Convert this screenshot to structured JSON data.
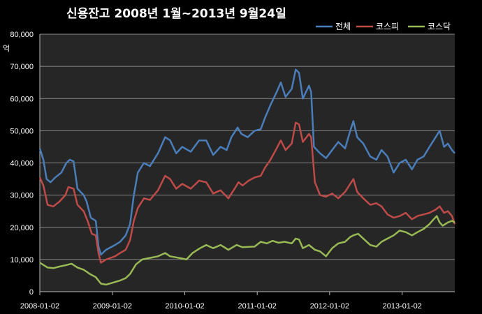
{
  "chart_data": {
    "type": "line",
    "title": "신용잔고 2008년 1월~2013년 9월24일",
    "ylabel": "억",
    "ylim": [
      0,
      80000
    ],
    "yticks": [
      0,
      10000,
      20000,
      30000,
      40000,
      50000,
      60000,
      70000,
      80000
    ],
    "ytick_labels": [
      "0",
      "10,000",
      "20,000",
      "30,000",
      "40,000",
      "50,000",
      "60,000",
      "70,000",
      "80,000"
    ],
    "xlim": [
      "2008-01-02",
      "2013-09-24"
    ],
    "xtick_labels": [
      "2008-01-02",
      "2009-01-02",
      "2010-01-02",
      "2011-01-02",
      "2012-01-02",
      "2013-01-02"
    ],
    "grid": "horizontal",
    "legend_position": "top-right",
    "series": [
      {
        "name": "전체",
        "color": "#4a7ebb",
        "points": [
          [
            "2008-01-02",
            44500
          ],
          [
            "2008-01-20",
            41000
          ],
          [
            "2008-02-05",
            35000
          ],
          [
            "2008-02-25",
            34000
          ],
          [
            "2008-03-20",
            35500
          ],
          [
            "2008-04-20",
            37000
          ],
          [
            "2008-05-15",
            40000
          ],
          [
            "2008-06-01",
            41000
          ],
          [
            "2008-06-20",
            40500
          ],
          [
            "2008-07-10",
            32000
          ],
          [
            "2008-08-10",
            30000
          ],
          [
            "2008-08-25",
            28000
          ],
          [
            "2008-09-15",
            23000
          ],
          [
            "2008-10-10",
            22000
          ],
          [
            "2008-10-24",
            14000
          ],
          [
            "2008-11-05",
            11500
          ],
          [
            "2008-12-01",
            13000
          ],
          [
            "2009-01-15",
            14500
          ],
          [
            "2009-02-10",
            15500
          ],
          [
            "2009-03-10",
            17500
          ],
          [
            "2009-04-01",
            21000
          ],
          [
            "2009-04-20",
            30000
          ],
          [
            "2009-05-10",
            37000
          ],
          [
            "2009-06-10",
            40000
          ],
          [
            "2009-07-10",
            39000
          ],
          [
            "2009-08-20",
            43000
          ],
          [
            "2009-09-25",
            48000
          ],
          [
            "2009-10-20",
            47000
          ],
          [
            "2009-11-20",
            43000
          ],
          [
            "2009-12-20",
            45000
          ],
          [
            "2010-02-01",
            43500
          ],
          [
            "2010-03-15",
            47000
          ],
          [
            "2010-04-20",
            47000
          ],
          [
            "2010-05-25",
            42500
          ],
          [
            "2010-07-01",
            45000
          ],
          [
            "2010-08-01",
            44000
          ],
          [
            "2010-08-25",
            48000
          ],
          [
            "2010-09-25",
            51000
          ],
          [
            "2010-10-15",
            49000
          ],
          [
            "2010-11-15",
            48000
          ],
          [
            "2010-12-20",
            50000
          ],
          [
            "2011-01-20",
            50500
          ],
          [
            "2011-02-10",
            54000
          ],
          [
            "2011-03-10",
            58000
          ],
          [
            "2011-04-10",
            62000
          ],
          [
            "2011-05-01",
            65000
          ],
          [
            "2011-05-25",
            60500
          ],
          [
            "2011-06-25",
            63000
          ],
          [
            "2011-07-15",
            69000
          ],
          [
            "2011-08-01",
            68000
          ],
          [
            "2011-08-20",
            60000
          ],
          [
            "2011-09-20",
            64000
          ],
          [
            "2011-10-01",
            62000
          ],
          [
            "2011-10-15",
            45000
          ],
          [
            "2011-11-15",
            43000
          ],
          [
            "2011-12-15",
            41500
          ],
          [
            "2012-01-15",
            44000
          ],
          [
            "2012-02-15",
            46500
          ],
          [
            "2012-03-20",
            44500
          ],
          [
            "2012-04-15",
            50000
          ],
          [
            "2012-05-01",
            53000
          ],
          [
            "2012-05-20",
            48000
          ],
          [
            "2012-06-20",
            46000
          ],
          [
            "2012-07-25",
            42000
          ],
          [
            "2012-08-25",
            41000
          ],
          [
            "2012-09-20",
            44000
          ],
          [
            "2012-10-20",
            42000
          ],
          [
            "2012-11-20",
            37000
          ],
          [
            "2012-12-20",
            40000
          ],
          [
            "2013-01-20",
            41000
          ],
          [
            "2013-02-20",
            38000
          ],
          [
            "2013-03-20",
            41000
          ],
          [
            "2013-04-20",
            42000
          ],
          [
            "2013-05-20",
            45000
          ],
          [
            "2013-06-20",
            48000
          ],
          [
            "2013-07-10",
            50000
          ],
          [
            "2013-08-01",
            45000
          ],
          [
            "2013-08-20",
            46000
          ],
          [
            "2013-09-10",
            44000
          ],
          [
            "2013-09-24",
            43000
          ]
        ]
      },
      {
        "name": "코스피",
        "color": "#be4b48",
        "points": [
          [
            "2008-01-02",
            35500
          ],
          [
            "2008-01-20",
            33000
          ],
          [
            "2008-02-10",
            27000
          ],
          [
            "2008-03-10",
            26500
          ],
          [
            "2008-04-10",
            28000
          ],
          [
            "2008-05-10",
            30000
          ],
          [
            "2008-05-25",
            32500
          ],
          [
            "2008-06-20",
            32000
          ],
          [
            "2008-07-10",
            27000
          ],
          [
            "2008-08-10",
            25000
          ],
          [
            "2008-08-30",
            22000
          ],
          [
            "2008-09-20",
            18000
          ],
          [
            "2008-10-10",
            17500
          ],
          [
            "2008-10-24",
            12000
          ],
          [
            "2008-11-05",
            9000
          ],
          [
            "2008-12-01",
            10000
          ],
          [
            "2009-01-15",
            11000
          ],
          [
            "2009-02-10",
            12000
          ],
          [
            "2009-03-10",
            13000
          ],
          [
            "2009-04-01",
            16000
          ],
          [
            "2009-04-20",
            22000
          ],
          [
            "2009-05-10",
            26000
          ],
          [
            "2009-06-10",
            29000
          ],
          [
            "2009-07-10",
            28500
          ],
          [
            "2009-08-20",
            31500
          ],
          [
            "2009-09-25",
            36000
          ],
          [
            "2009-10-20",
            35000
          ],
          [
            "2009-11-20",
            32000
          ],
          [
            "2009-12-20",
            33500
          ],
          [
            "2010-02-01",
            32000
          ],
          [
            "2010-03-15",
            34500
          ],
          [
            "2010-04-20",
            34000
          ],
          [
            "2010-05-25",
            30500
          ],
          [
            "2010-07-01",
            31500
          ],
          [
            "2010-08-10",
            29000
          ],
          [
            "2010-09-10",
            32000
          ],
          [
            "2010-09-30",
            34000
          ],
          [
            "2010-10-20",
            33000
          ],
          [
            "2010-11-20",
            34500
          ],
          [
            "2010-12-20",
            35500
          ],
          [
            "2011-01-20",
            36000
          ],
          [
            "2011-02-10",
            38500
          ],
          [
            "2011-03-10",
            41000
          ],
          [
            "2011-04-10",
            44500
          ],
          [
            "2011-05-01",
            47000
          ],
          [
            "2011-05-25",
            44000
          ],
          [
            "2011-06-25",
            46000
          ],
          [
            "2011-07-15",
            52500
          ],
          [
            "2011-08-01",
            52000
          ],
          [
            "2011-08-20",
            46500
          ],
          [
            "2011-09-20",
            49000
          ],
          [
            "2011-10-01",
            48000
          ],
          [
            "2011-10-20",
            34000
          ],
          [
            "2011-11-15",
            30000
          ],
          [
            "2011-12-15",
            29500
          ],
          [
            "2012-01-15",
            30500
          ],
          [
            "2012-02-15",
            29000
          ],
          [
            "2012-03-20",
            31000
          ],
          [
            "2012-04-15",
            33500
          ],
          [
            "2012-05-01",
            35000
          ],
          [
            "2012-05-20",
            31000
          ],
          [
            "2012-06-20",
            29000
          ],
          [
            "2012-07-25",
            27000
          ],
          [
            "2012-08-25",
            27500
          ],
          [
            "2012-09-20",
            26500
          ],
          [
            "2012-10-20",
            24000
          ],
          [
            "2012-11-20",
            23000
          ],
          [
            "2012-12-20",
            23500
          ],
          [
            "2013-01-20",
            24500
          ],
          [
            "2013-02-20",
            22500
          ],
          [
            "2013-03-20",
            23500
          ],
          [
            "2013-04-20",
            24000
          ],
          [
            "2013-05-20",
            24500
          ],
          [
            "2013-06-20",
            25500
          ],
          [
            "2013-07-10",
            26500
          ],
          [
            "2013-08-01",
            24500
          ],
          [
            "2013-08-20",
            25000
          ],
          [
            "2013-09-10",
            23500
          ],
          [
            "2013-09-24",
            21000
          ]
        ]
      },
      {
        "name": "코스닥",
        "color": "#98b954",
        "points": [
          [
            "2008-01-02",
            9000
          ],
          [
            "2008-02-10",
            7500
          ],
          [
            "2008-03-10",
            7300
          ],
          [
            "2008-04-10",
            7800
          ],
          [
            "2008-05-10",
            8200
          ],
          [
            "2008-06-10",
            8700
          ],
          [
            "2008-07-10",
            7500
          ],
          [
            "2008-08-10",
            6800
          ],
          [
            "2008-09-10",
            5500
          ],
          [
            "2008-10-10",
            4500
          ],
          [
            "2008-11-05",
            2500
          ],
          [
            "2008-12-01",
            2200
          ],
          [
            "2009-01-15",
            3000
          ],
          [
            "2009-02-10",
            3500
          ],
          [
            "2009-03-10",
            4200
          ],
          [
            "2009-04-01",
            5500
          ],
          [
            "2009-05-01",
            8500
          ],
          [
            "2009-06-01",
            10000
          ],
          [
            "2009-07-10",
            10500
          ],
          [
            "2009-08-20",
            11000
          ],
          [
            "2009-09-25",
            12000
          ],
          [
            "2009-10-20",
            11000
          ],
          [
            "2009-12-20",
            10300
          ],
          [
            "2010-01-10",
            10000
          ],
          [
            "2010-02-10",
            12000
          ],
          [
            "2010-03-20",
            13500
          ],
          [
            "2010-04-20",
            14500
          ],
          [
            "2010-05-25",
            13500
          ],
          [
            "2010-07-01",
            14500
          ],
          [
            "2010-08-10",
            13000
          ],
          [
            "2010-09-20",
            14500
          ],
          [
            "2010-10-20",
            13800
          ],
          [
            "2010-12-20",
            14000
          ],
          [
            "2011-01-20",
            15500
          ],
          [
            "2011-02-20",
            15000
          ],
          [
            "2011-03-20",
            15800
          ],
          [
            "2011-04-20",
            15200
          ],
          [
            "2011-05-20",
            15500
          ],
          [
            "2011-06-25",
            15000
          ],
          [
            "2011-07-15",
            16500
          ],
          [
            "2011-08-01",
            16200
          ],
          [
            "2011-08-20",
            13500
          ],
          [
            "2011-09-20",
            14500
          ],
          [
            "2011-10-20",
            13000
          ],
          [
            "2011-11-15",
            12500
          ],
          [
            "2011-12-15",
            11000
          ],
          [
            "2012-01-15",
            13500
          ],
          [
            "2012-02-15",
            15000
          ],
          [
            "2012-03-20",
            15500
          ],
          [
            "2012-04-15",
            17000
          ],
          [
            "2012-05-01",
            17500
          ],
          [
            "2012-05-25",
            18000
          ],
          [
            "2012-06-20",
            16500
          ],
          [
            "2012-07-25",
            14500
          ],
          [
            "2012-08-25",
            14000
          ],
          [
            "2012-09-20",
            15500
          ],
          [
            "2012-10-20",
            16500
          ],
          [
            "2012-11-20",
            17500
          ],
          [
            "2012-12-20",
            19000
          ],
          [
            "2013-01-20",
            18500
          ],
          [
            "2013-02-20",
            17500
          ],
          [
            "2013-03-20",
            18500
          ],
          [
            "2013-04-20",
            19500
          ],
          [
            "2013-05-20",
            21000
          ],
          [
            "2013-06-10",
            22500
          ],
          [
            "2013-06-25",
            23500
          ],
          [
            "2013-07-10",
            21500
          ],
          [
            "2013-07-25",
            20500
          ],
          [
            "2013-08-20",
            21500
          ],
          [
            "2013-09-10",
            22000
          ],
          [
            "2013-09-24",
            21500
          ]
        ]
      }
    ]
  }
}
